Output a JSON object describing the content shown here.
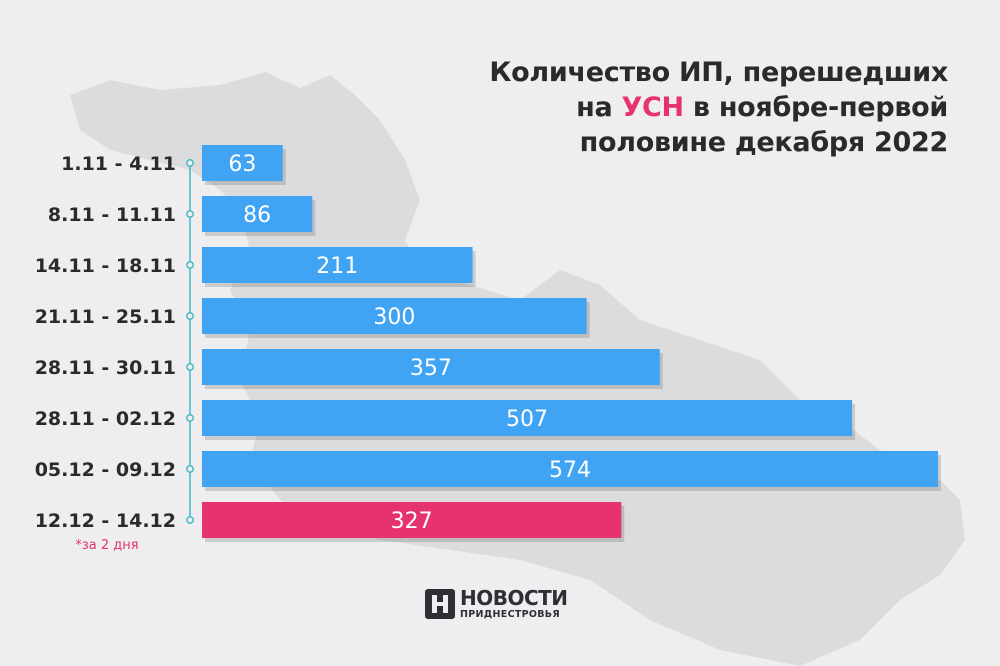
{
  "title": {
    "line1": "Количество ИП, перешедших",
    "line2_pre": "на ",
    "line2_highlight": "УСН",
    "line2_post": " в ноябре-первой",
    "line3": "половине декабря 2022"
  },
  "chart_data": {
    "type": "bar",
    "orientation": "horizontal",
    "categories": [
      "1.11 - 4.11",
      "8.11 - 11.11",
      "14.11 - 18.11",
      "21.11 - 25.11",
      "28.11 - 30.11",
      "28.11 - 02.12",
      "05.12 - 09.12",
      "12.12 - 14.12"
    ],
    "values": [
      63,
      86,
      211,
      300,
      357,
      507,
      574,
      327
    ],
    "value_labels": [
      "63",
      "86",
      "211",
      "300",
      "357",
      "507",
      "574",
      "327"
    ],
    "colors": [
      "#41a3f4",
      "#41a3f4",
      "#41a3f4",
      "#41a3f4",
      "#41a3f4",
      "#41a3f4",
      "#41a3f4",
      "#e6336f"
    ],
    "xlim": [
      0,
      574
    ],
    "grid": false,
    "legend": "none",
    "annotation": "*за 2 дня"
  },
  "logo": {
    "line1": "НОВОСТИ",
    "line2": "ПРИДНЕСТРОВЬЯ"
  },
  "colors": {
    "background": "#eeeef0",
    "bar": "#41a3f4",
    "highlight": "#e6336f",
    "axis": "#41b8c4",
    "map": "#dcdcdf"
  }
}
